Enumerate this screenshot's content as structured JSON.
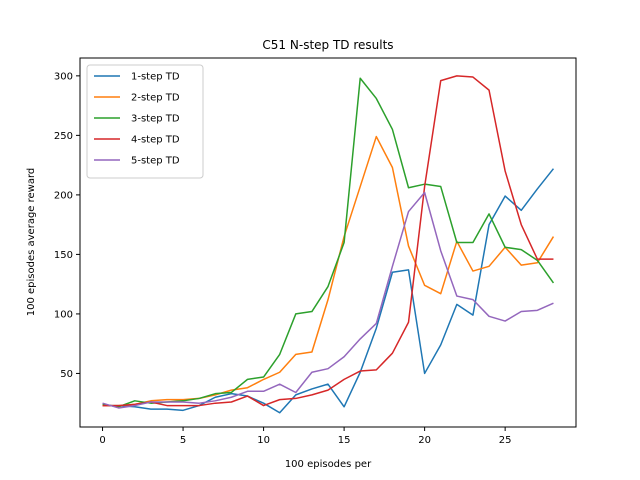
{
  "chart_data": {
    "type": "line",
    "title": "C51 N-step TD results",
    "xlabel": "100 episodes per",
    "ylabel": "100 episodes average reward",
    "xlim": [
      -1.4,
      29.4
    ],
    "ylim": [
      5,
      315
    ],
    "xticks": [
      0,
      5,
      10,
      15,
      20,
      25
    ],
    "yticks": [
      50,
      100,
      150,
      200,
      250,
      300
    ],
    "grid": false,
    "legend_position": "top-left",
    "x": [
      0,
      1,
      2,
      3,
      4,
      5,
      6,
      7,
      8,
      9,
      10,
      11,
      12,
      13,
      14,
      15,
      16,
      17,
      18,
      19,
      20,
      21,
      22,
      23,
      24,
      25,
      26,
      27,
      28
    ],
    "series": [
      {
        "name": "1-step TD",
        "color": "#1f77b4",
        "values": [
          23,
          23,
          22,
          20,
          20,
          19,
          23,
          30,
          33,
          31,
          25,
          17,
          32,
          37,
          41,
          22,
          51,
          88,
          135,
          137,
          50,
          74,
          108,
          99,
          175,
          199,
          187,
          205,
          222
        ]
      },
      {
        "name": "2-step TD",
        "color": "#ff7f0e",
        "values": [
          23,
          23,
          24,
          27,
          28,
          28,
          29,
          32,
          36,
          38,
          45,
          51,
          66,
          68,
          112,
          165,
          207,
          249,
          223,
          157,
          124,
          117,
          161,
          136,
          140,
          156,
          141,
          143,
          165
        ]
      },
      {
        "name": "3-step TD",
        "color": "#2ca02c",
        "values": [
          24,
          22,
          27,
          25,
          26,
          27,
          29,
          33,
          34,
          45,
          47,
          66,
          100,
          102,
          123,
          160,
          298,
          281,
          255,
          206,
          209,
          207,
          160,
          160,
          184,
          156,
          154,
          145,
          126
        ]
      },
      {
        "name": "4-step TD",
        "color": "#d62728",
        "values": [
          23,
          23,
          24,
          26,
          23,
          23,
          23,
          25,
          26,
          31,
          23,
          28,
          29,
          32,
          36,
          45,
          52,
          53,
          67,
          93,
          207,
          296,
          300,
          299,
          288,
          220,
          175,
          146,
          146
        ]
      },
      {
        "name": "5-step TD",
        "color": "#9467bd",
        "values": [
          25,
          21,
          23,
          26,
          26,
          26,
          25,
          27,
          30,
          35,
          35,
          41,
          34,
          51,
          54,
          64,
          79,
          92,
          140,
          186,
          202,
          153,
          115,
          112,
          98,
          94,
          102,
          103,
          109
        ]
      }
    ]
  }
}
